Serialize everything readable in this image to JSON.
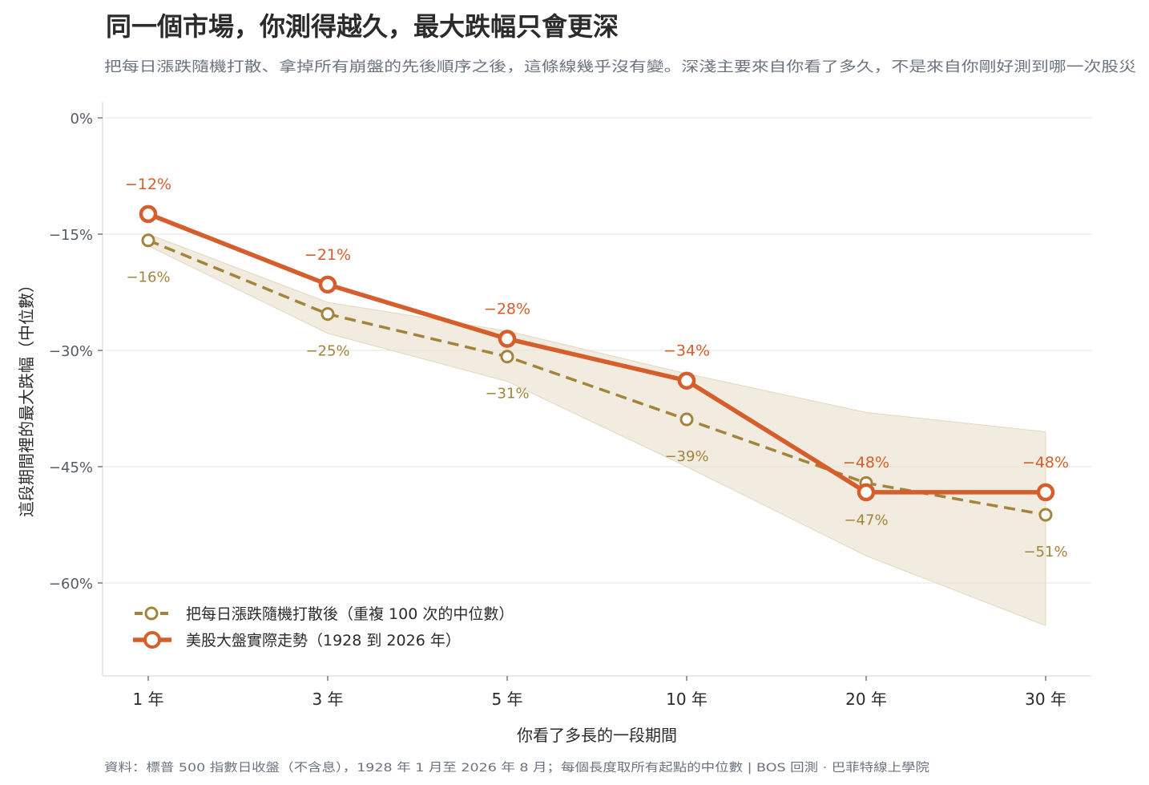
{
  "chart_data": {
    "type": "line",
    "title": "同一個市場，你測得越久，最大跌幅只會更深",
    "subtitle": "把每日漲跌隨機打散、拿掉所有崩盤的先後順序之後，這條線幾乎沒有變。深淺主要來自你看了多久，不是來自你剛好測到哪一次股災",
    "xlabel": "你看了多長的一段期間",
    "ylabel": "這段期間裡的最大跌幅（中位數）",
    "categories": [
      "1 年",
      "3 年",
      "5 年",
      "10 年",
      "20 年",
      "30 年"
    ],
    "ylim": [
      -72,
      4
    ],
    "yticks": [
      0,
      -15,
      -30,
      -45,
      -60
    ],
    "ytick_labels": [
      "0%",
      "−15%",
      "−30%",
      "−45%",
      "−60%"
    ],
    "grid": true,
    "legend_position": "bottom-left",
    "series": [
      {
        "name": "把每日漲跌隨機打散後（重複 100 次的中位數）",
        "values": [
          -15.8,
          -25.3,
          -30.8,
          -38.9,
          -47.1,
          -51.2
        ],
        "labels": [
          "−16%",
          "−25%",
          "−31%",
          "−39%",
          "−47%",
          "−51%"
        ],
        "band_upper": [
          -15.0,
          -23.8,
          -27.5,
          -33.0,
          -38.0,
          -40.5
        ],
        "band_lower": [
          -16.5,
          -27.8,
          -34.0,
          -45.0,
          -56.5,
          -65.5
        ],
        "color": "#a4843b",
        "band_color": "#e8dfc9",
        "style": "dashed"
      },
      {
        "name": "美股大盤實際走勢（1928 到 2026 年）",
        "values": [
          -12.4,
          -21.5,
          -28.5,
          -33.9,
          -48.3,
          -48.3
        ],
        "labels": [
          "−12%",
          "−21%",
          "−28%",
          "−34%",
          "−48%",
          "−48%"
        ],
        "color": "#d55e2c",
        "style": "solid"
      }
    ],
    "footer": "資料：標普 500 指數日收盤（不含息），1928 年 1 月至 2026 年 8 月；每個長度取所有起點的中位數 | BOS 回測 · 巴菲特線上學院"
  }
}
